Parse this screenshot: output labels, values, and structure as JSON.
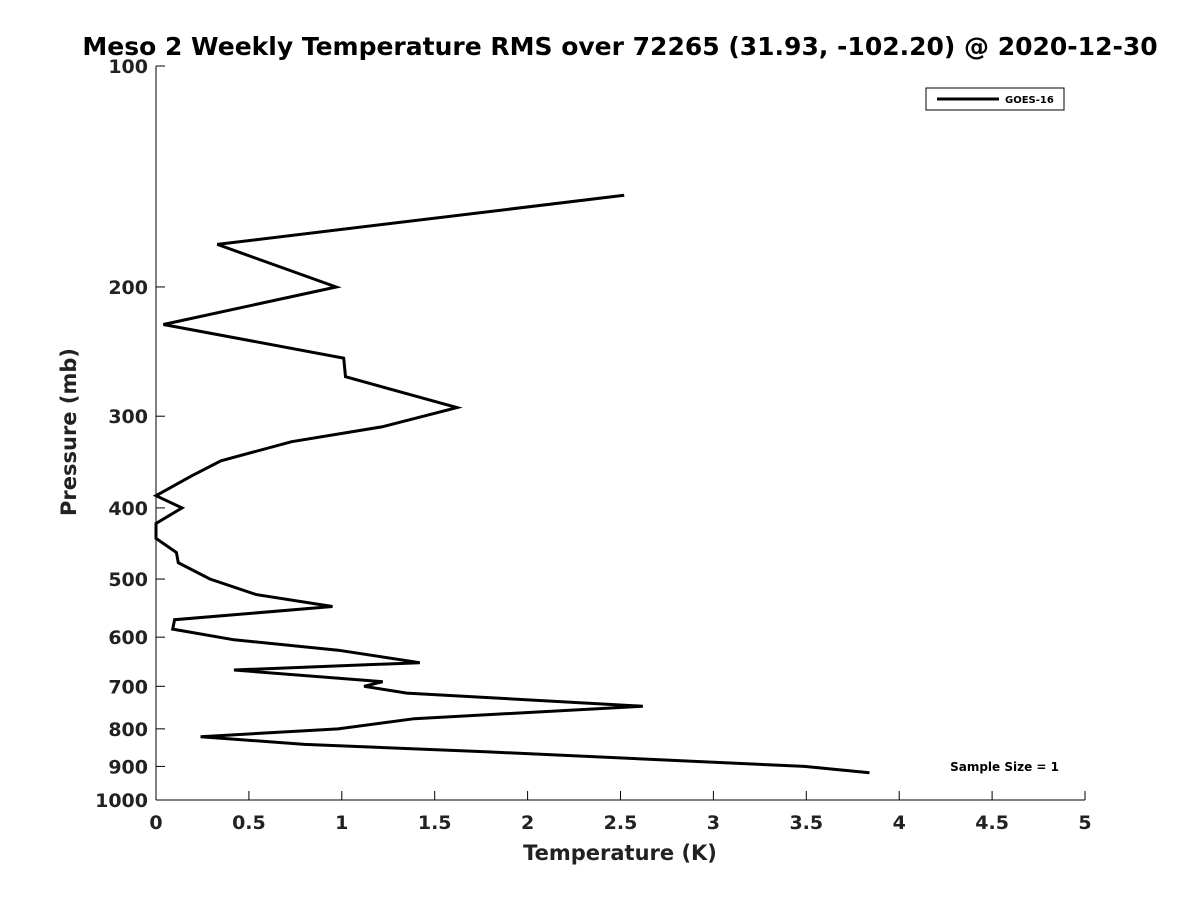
{
  "chart_data": {
    "type": "line",
    "title": "Meso 2 Weekly Temperature RMS over 72265 (31.93, -102.20) @ 2020-12-30",
    "xlabel": "Temperature (K)",
    "ylabel": "Pressure (mb)",
    "xlim": [
      0,
      5
    ],
    "ylim": [
      100,
      1000
    ],
    "y_scale": "log",
    "y_reversed": true,
    "x_ticks": [
      0,
      0.5,
      1,
      1.5,
      2,
      2.5,
      3,
      3.5,
      4,
      4.5,
      5
    ],
    "x_tick_labels": [
      "0",
      "0.5",
      "1",
      "1.5",
      "2",
      "2.5",
      "3",
      "3.5",
      "4",
      "4.5",
      "5"
    ],
    "y_ticks": [
      100,
      200,
      300,
      400,
      500,
      600,
      700,
      800,
      900,
      1000
    ],
    "y_tick_labels": [
      "100",
      "200",
      "300",
      "400",
      "500",
      "600",
      "700",
      "800",
      "900",
      "1000"
    ],
    "grid": false,
    "legend_position": "top-right",
    "annotation": "Sample Size = 1",
    "series": [
      {
        "name": "GOES-16",
        "color": "#000000",
        "points": [
          [
            2.52,
            150
          ],
          [
            0.33,
            175
          ],
          [
            0.97,
            200
          ],
          [
            0.04,
            225
          ],
          [
            1.01,
            250
          ],
          [
            1.02,
            265
          ],
          [
            1.62,
            292
          ],
          [
            1.22,
            310
          ],
          [
            0.73,
            325
          ],
          [
            0.35,
            345
          ],
          [
            0.19,
            362
          ],
          [
            0.0,
            385
          ],
          [
            0.14,
            400
          ],
          [
            0.0,
            420
          ],
          [
            0.0,
            440
          ],
          [
            0.11,
            460
          ],
          [
            0.12,
            475
          ],
          [
            0.29,
            500
          ],
          [
            0.54,
            525
          ],
          [
            0.95,
            545
          ],
          [
            0.1,
            568
          ],
          [
            0.09,
            585
          ],
          [
            0.42,
            605
          ],
          [
            0.98,
            625
          ],
          [
            1.42,
            650
          ],
          [
            0.42,
            665
          ],
          [
            1.22,
            690
          ],
          [
            1.12,
            700
          ],
          [
            1.35,
            715
          ],
          [
            2.62,
            745
          ],
          [
            1.39,
            775
          ],
          [
            0.98,
            800
          ],
          [
            0.24,
            820
          ],
          [
            0.8,
            840
          ],
          [
            1.79,
            860
          ],
          [
            3.49,
            900
          ],
          [
            3.84,
            918
          ]
        ]
      }
    ]
  }
}
